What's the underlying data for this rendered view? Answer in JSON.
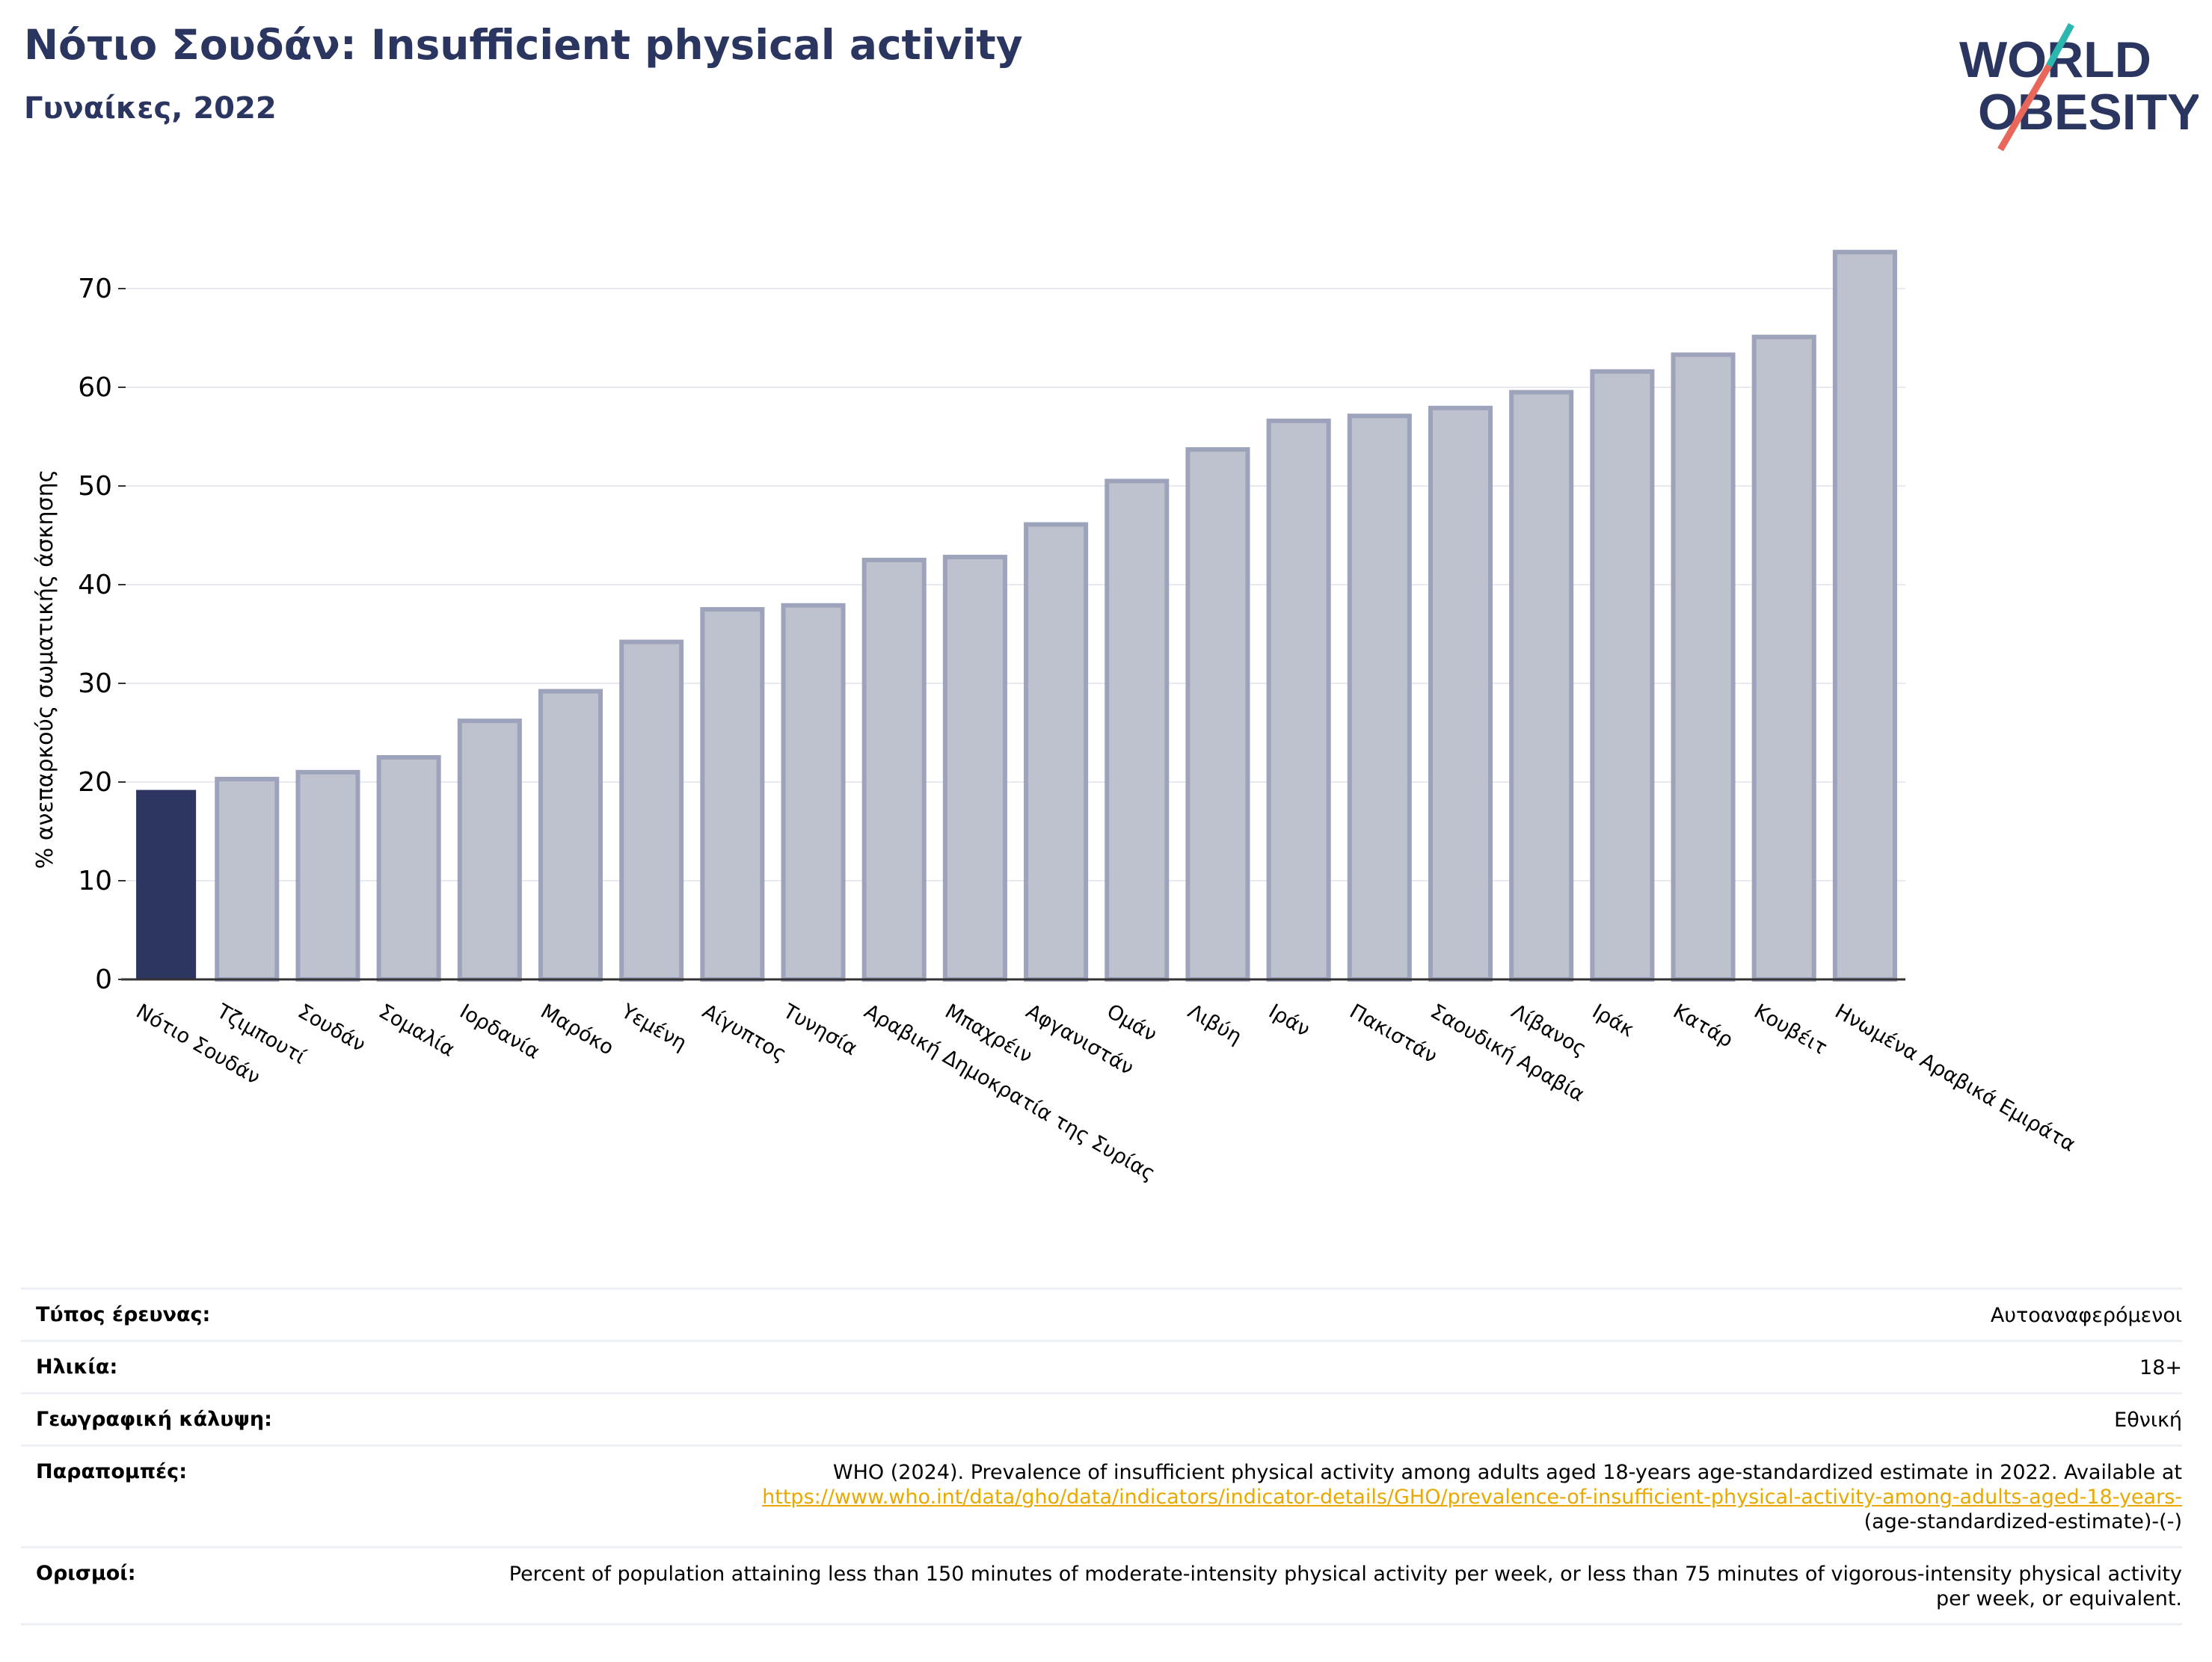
{
  "header": {
    "title": "Νότιο Σουδάν: Insufficient physical activity",
    "subtitle": "Γυναίκες, 2022"
  },
  "logo": {
    "line1": "WORLD",
    "line2": "OBESITY"
  },
  "chart_data": {
    "type": "bar",
    "ylabel": "% ανεπαρκούς σωματικής άσκησης",
    "ylim": [
      0,
      75
    ],
    "yticks": [
      0,
      10,
      20,
      30,
      40,
      50,
      60,
      70
    ],
    "grid": true,
    "categories": [
      "Νότιο Σουδάν",
      "Τζιμπουτί",
      "Σουδάν",
      "Σομαλία",
      "Ιορδανία",
      "Μαρόκο",
      "Υεμένη",
      "Αίγυπτος",
      "Τυνησία",
      "Αραβική Δημοκρατία της Συρίας",
      "Μπαχρέιν",
      "Αφγανιστάν",
      "Ομάν",
      "Λιβύη",
      "Ιράν",
      "Πακιστάν",
      "Σαουδική Αραβία",
      "Λίβανος",
      "Ιράκ",
      "Κατάρ",
      "Κουβέιτ",
      "Ηνωμένα Αραβικά Εμιράτα"
    ],
    "values": [
      19.2,
      20.3,
      21.0,
      22.5,
      26.2,
      29.2,
      34.2,
      37.5,
      37.9,
      42.5,
      42.8,
      46.1,
      50.5,
      53.7,
      56.6,
      57.1,
      57.9,
      59.5,
      61.6,
      63.3,
      65.1,
      73.7
    ],
    "highlight_index": 0,
    "colors": {
      "highlight": "#2d3561",
      "bar": "#bec1ce",
      "bar_edge": "#9ea3bc",
      "grid": "#e8eaf0",
      "axis": "#333333"
    }
  },
  "meta": {
    "survey_type": {
      "label": "Τύπος έρευνας:",
      "value": "Αυτοαναφερόμενοι"
    },
    "age": {
      "label": "Ηλικία:",
      "value": "18+"
    },
    "coverage": {
      "label": "Γεωγραφική κάλυψη:",
      "value": "Εθνική"
    },
    "references": {
      "label": "Παραπομπές:",
      "text": "WHO (2024). Prevalence of insufficient physical activity among adults aged 18-years age-standardized estimate in 2022. Available at",
      "link": "https://www.who.int/data/gho/data/indicators/indicator-details/GHO/prevalence-of-insufficient-physical-activity-among-adults-aged-18-years-",
      "tail": "(age-standardized-estimate)-(-)"
    },
    "definitions": {
      "label": "Ορισμοί:",
      "value": "Percent of population attaining less than 150 minutes of moderate-intensity physical activity per week, or less than 75 minutes of vigorous-intensity physical activity per week, or equivalent."
    }
  }
}
